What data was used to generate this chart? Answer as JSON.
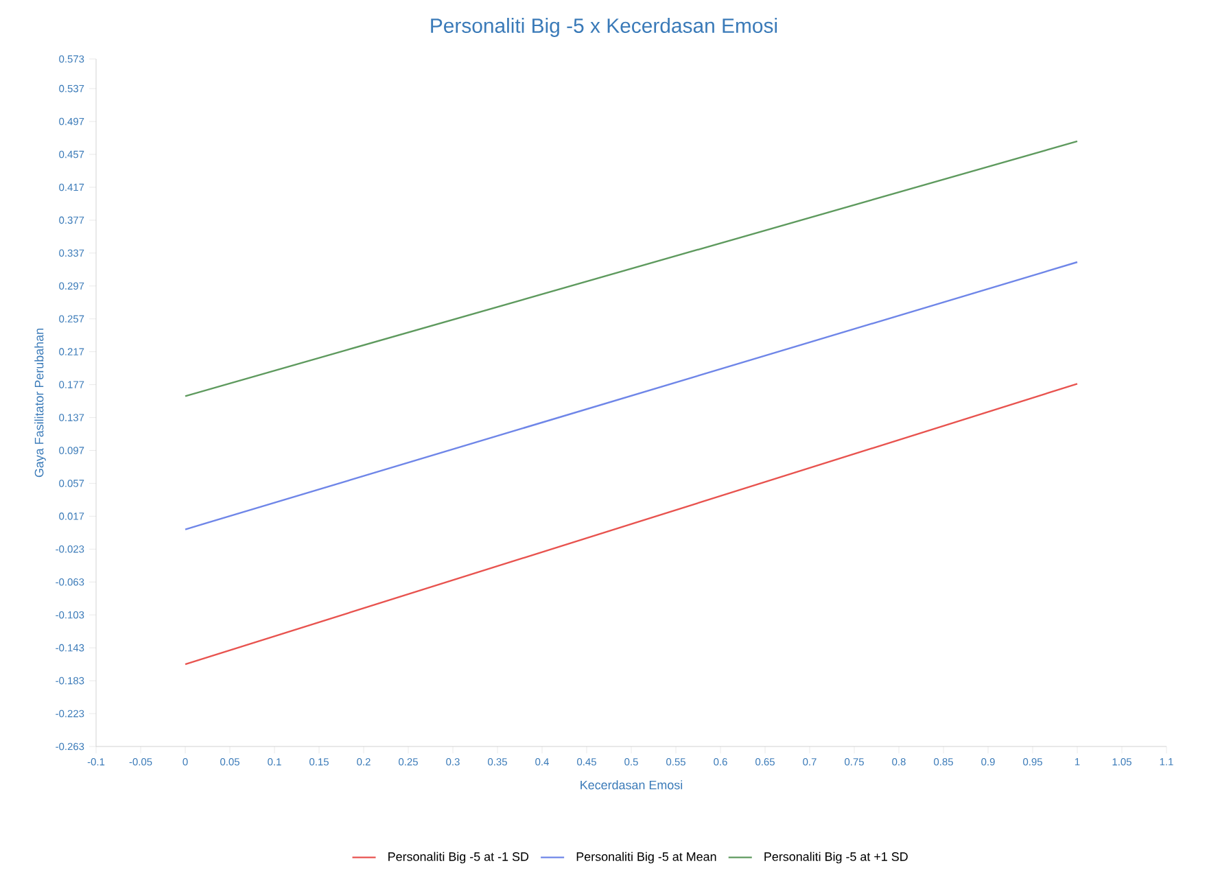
{
  "chart_data": {
    "type": "line",
    "title": "Personaliti Big -5 x Kecerdasan Emosi",
    "xlabel": "Kecerdasan Emosi",
    "ylabel": "Gaya Fasilitator  Perubahan",
    "x": [
      0,
      1
    ],
    "series": [
      {
        "name": "Personaliti Big -5 at -1 SD",
        "color": "#e8534f",
        "values": [
          -0.163,
          0.178
        ]
      },
      {
        "name": "Personaliti Big -5 at Mean",
        "color": "#6f86e8",
        "values": [
          0.001,
          0.326
        ]
      },
      {
        "name": "Personaliti Big -5 at +1 SD",
        "color": "#5e9a5e",
        "values": [
          0.163,
          0.473
        ]
      }
    ],
    "xlim": [
      -0.1,
      1.1
    ],
    "ylim": [
      -0.263,
      0.573
    ],
    "xticks": [
      -0.1,
      -0.05,
      0,
      0.05,
      0.1,
      0.15,
      0.2,
      0.25,
      0.3,
      0.35,
      0.4,
      0.45,
      0.5,
      0.55,
      0.6,
      0.65,
      0.7,
      0.75,
      0.8,
      0.85,
      0.9,
      0.95,
      1,
      1.05,
      1.1
    ],
    "yticks": [
      -0.263,
      -0.223,
      -0.183,
      -0.143,
      -0.103,
      -0.063,
      -0.023,
      0.017,
      0.057,
      0.097,
      0.137,
      0.177,
      0.217,
      0.257,
      0.297,
      0.337,
      0.377,
      0.417,
      0.457,
      0.497,
      0.537,
      0.573
    ],
    "grid": false,
    "legend": "bottom",
    "marker": "none",
    "line_style": "solid"
  }
}
